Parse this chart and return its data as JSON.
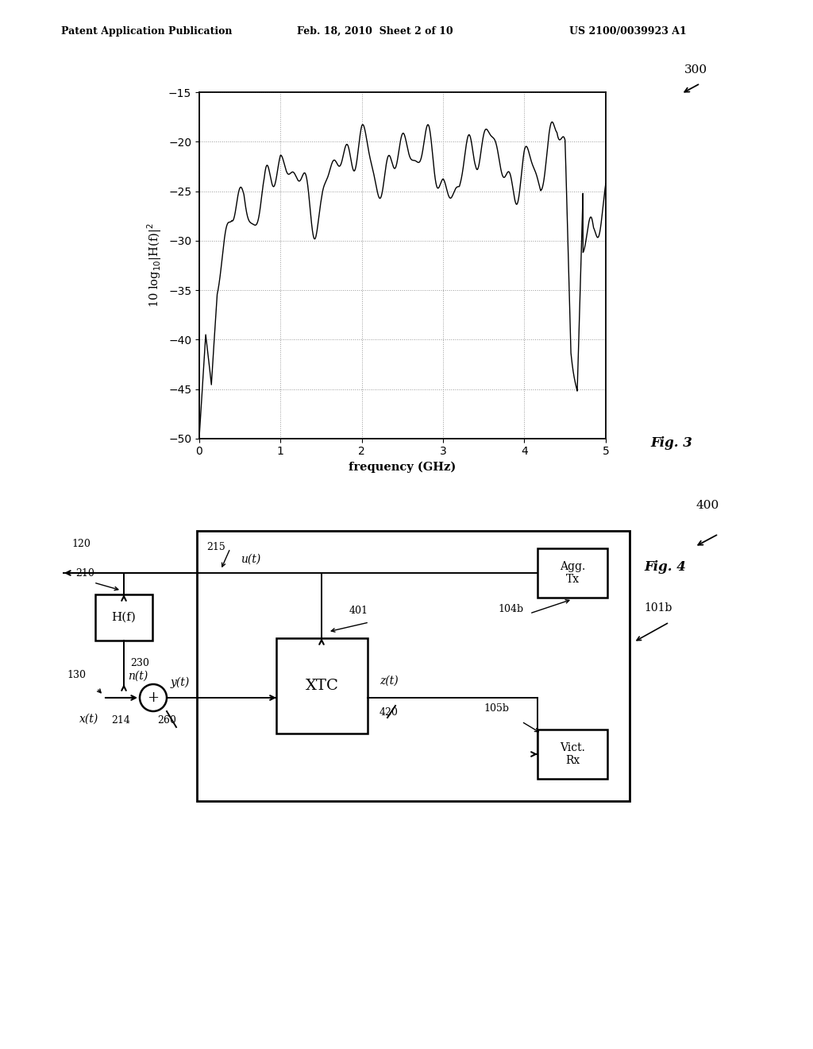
{
  "header_left": "Patent Application Publication",
  "header_mid": "Feb. 18, 2010  Sheet 2 of 10",
  "header_right": "US 2100/0039923 A1",
  "fig3_label": "Fig. 3",
  "fig3_ref": "300",
  "fig4_label": "Fig. 4",
  "fig4_ref": "400",
  "plot_ylabel": "10 log$_{10}$|H(f)|$^2$",
  "plot_xlabel": "frequency (GHz)",
  "plot_xlim": [
    0,
    5
  ],
  "plot_ylim": [
    -50,
    -15
  ],
  "plot_yticks": [
    -50,
    -45,
    -40,
    -35,
    -30,
    -25,
    -20,
    -15
  ],
  "plot_xticks": [
    0,
    1,
    2,
    3,
    4,
    5
  ],
  "bg_color": "#ffffff",
  "line_color": "#000000"
}
